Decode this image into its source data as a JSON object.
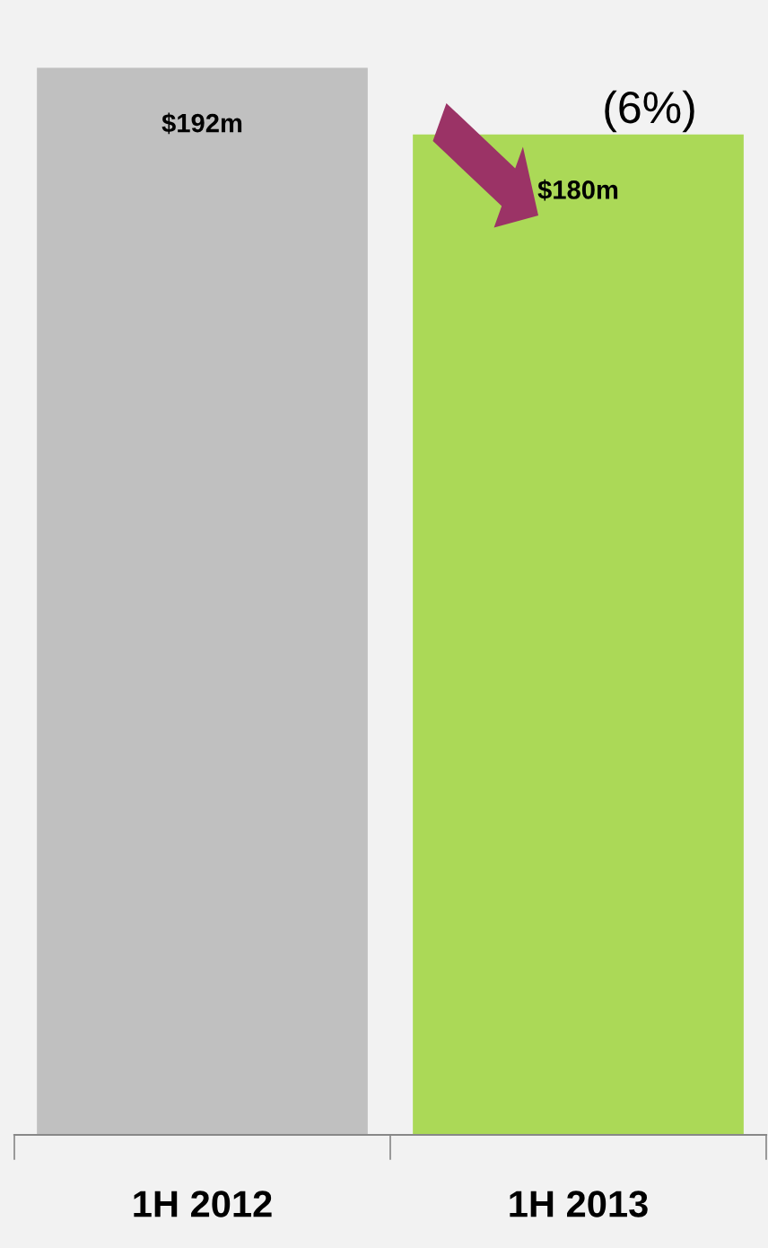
{
  "chart_data": {
    "type": "bar",
    "categories": [
      "1H 2012",
      "1H 2013"
    ],
    "values": [
      192,
      180
    ],
    "colors": [
      "#c0c0c0",
      "#abd957"
    ],
    "value_labels": [
      "$192m",
      "$180m"
    ],
    "tick_labels": "x",
    "grid": false,
    "legend": false,
    "annotations": [
      "(6%)"
    ]
  }
}
